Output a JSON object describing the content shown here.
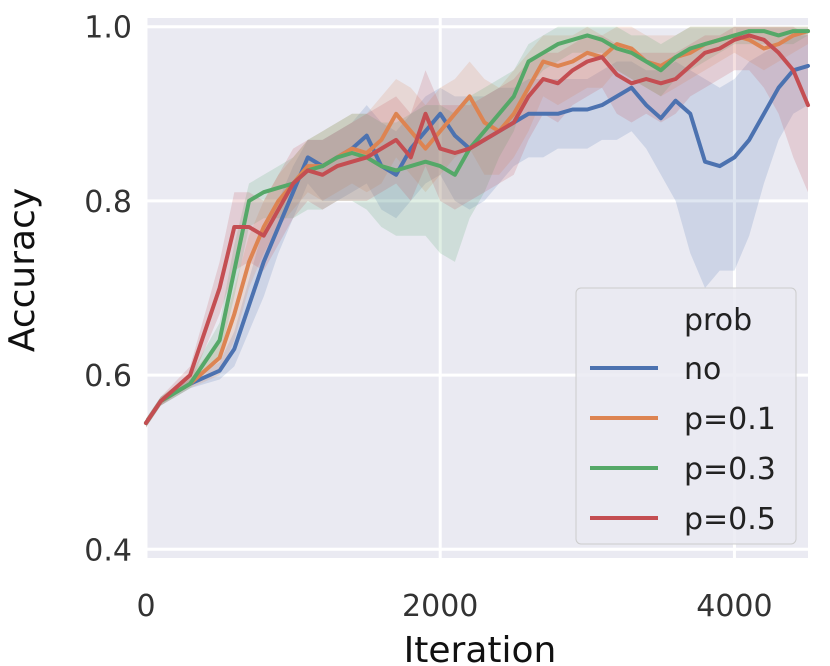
{
  "chart_data": {
    "type": "line",
    "title": "",
    "xlabel": "Iteration",
    "ylabel": "Accuracy",
    "xlim": [
      0,
      4500
    ],
    "ylim": [
      0.4,
      1.0
    ],
    "xticks": [
      0,
      2000,
      4000
    ],
    "xtick_labels": [
      "0",
      "2000",
      "4000"
    ],
    "yticks": [
      0.4,
      0.6,
      0.8,
      1.0
    ],
    "ytick_labels": [
      "0.4",
      "0.6",
      "0.8",
      "1.0"
    ],
    "grid": true,
    "background": "#eaeaf2",
    "legend": {
      "title": "prob",
      "position": "lower-right"
    },
    "series": [
      {
        "name": "no",
        "color": "#4c72b0",
        "x": [
          0,
          100,
          300,
          500,
          600,
          700,
          800,
          900,
          1000,
          1100,
          1200,
          1300,
          1400,
          1500,
          1600,
          1700,
          1800,
          1900,
          2000,
          2100,
          2200,
          2300,
          2400,
          2500,
          2600,
          2700,
          2800,
          2900,
          3000,
          3100,
          3200,
          3300,
          3400,
          3500,
          3600,
          3700,
          3800,
          3900,
          4000,
          4100,
          4200,
          4300,
          4400,
          4500
        ],
        "y": [
          0.545,
          0.57,
          0.59,
          0.605,
          0.63,
          0.68,
          0.73,
          0.77,
          0.81,
          0.85,
          0.84,
          0.85,
          0.86,
          0.875,
          0.84,
          0.83,
          0.86,
          0.88,
          0.9,
          0.875,
          0.86,
          0.87,
          0.88,
          0.89,
          0.9,
          0.9,
          0.9,
          0.905,
          0.905,
          0.91,
          0.92,
          0.93,
          0.91,
          0.895,
          0.915,
          0.9,
          0.845,
          0.84,
          0.85,
          0.87,
          0.9,
          0.93,
          0.95,
          0.955
        ],
        "lower": [
          0.54,
          0.565,
          0.585,
          0.595,
          0.61,
          0.65,
          0.69,
          0.74,
          0.78,
          0.82,
          0.8,
          0.8,
          0.81,
          0.82,
          0.79,
          0.78,
          0.8,
          0.82,
          0.83,
          0.8,
          0.79,
          0.8,
          0.82,
          0.84,
          0.85,
          0.85,
          0.86,
          0.86,
          0.86,
          0.87,
          0.87,
          0.88,
          0.86,
          0.83,
          0.8,
          0.74,
          0.7,
          0.72,
          0.72,
          0.76,
          0.82,
          0.87,
          0.9,
          0.91
        ],
        "upper": [
          0.55,
          0.575,
          0.595,
          0.615,
          0.65,
          0.71,
          0.77,
          0.8,
          0.84,
          0.87,
          0.87,
          0.88,
          0.89,
          0.91,
          0.89,
          0.88,
          0.9,
          0.92,
          0.93,
          0.92,
          0.92,
          0.92,
          0.93,
          0.93,
          0.94,
          0.94,
          0.94,
          0.94,
          0.94,
          0.95,
          0.96,
          0.96,
          0.95,
          0.95,
          0.96,
          0.95,
          0.94,
          0.93,
          0.94,
          0.96,
          0.97,
          0.98,
          0.99,
          0.99
        ]
      },
      {
        "name": "p=0.1",
        "color": "#dd8452",
        "x": [
          0,
          100,
          300,
          500,
          600,
          700,
          800,
          900,
          1000,
          1100,
          1200,
          1300,
          1400,
          1500,
          1600,
          1700,
          1800,
          1900,
          2000,
          2100,
          2200,
          2300,
          2400,
          2500,
          2600,
          2700,
          2800,
          2900,
          3000,
          3100,
          3200,
          3300,
          3400,
          3500,
          3600,
          3700,
          3800,
          3900,
          4000,
          4100,
          4200,
          4300,
          4400,
          4500
        ],
        "y": [
          0.545,
          0.57,
          0.59,
          0.62,
          0.67,
          0.73,
          0.77,
          0.8,
          0.82,
          0.84,
          0.84,
          0.85,
          0.86,
          0.855,
          0.87,
          0.9,
          0.88,
          0.86,
          0.88,
          0.9,
          0.92,
          0.89,
          0.88,
          0.9,
          0.93,
          0.96,
          0.955,
          0.96,
          0.97,
          0.965,
          0.98,
          0.975,
          0.96,
          0.955,
          0.965,
          0.97,
          0.98,
          0.985,
          0.99,
          0.985,
          0.975,
          0.98,
          0.99,
          0.995
        ],
        "lower": [
          0.54,
          0.565,
          0.585,
          0.6,
          0.64,
          0.7,
          0.74,
          0.77,
          0.79,
          0.81,
          0.8,
          0.81,
          0.82,
          0.81,
          0.82,
          0.85,
          0.83,
          0.81,
          0.83,
          0.85,
          0.86,
          0.83,
          0.83,
          0.85,
          0.88,
          0.92,
          0.91,
          0.92,
          0.93,
          0.93,
          0.95,
          0.94,
          0.93,
          0.92,
          0.93,
          0.94,
          0.95,
          0.96,
          0.97,
          0.96,
          0.95,
          0.96,
          0.97,
          0.98
        ],
        "upper": [
          0.55,
          0.575,
          0.6,
          0.64,
          0.7,
          0.76,
          0.8,
          0.83,
          0.85,
          0.87,
          0.88,
          0.89,
          0.9,
          0.9,
          0.92,
          0.94,
          0.93,
          0.91,
          0.93,
          0.94,
          0.96,
          0.94,
          0.93,
          0.95,
          0.97,
          0.99,
          0.99,
          0.99,
          1.0,
          0.99,
          1.0,
          1.0,
          0.99,
          0.99,
          0.99,
          1.0,
          1.0,
          1.0,
          1.0,
          1.0,
          1.0,
          1.0,
          1.0,
          1.0
        ]
      },
      {
        "name": "p=0.3",
        "color": "#55a868",
        "x": [
          0,
          100,
          300,
          500,
          600,
          700,
          800,
          900,
          1000,
          1100,
          1200,
          1300,
          1400,
          1500,
          1600,
          1700,
          1800,
          1900,
          2000,
          2100,
          2200,
          2300,
          2400,
          2500,
          2600,
          2700,
          2800,
          2900,
          3000,
          3100,
          3200,
          3300,
          3400,
          3500,
          3600,
          3700,
          3800,
          3900,
          4000,
          4100,
          4200,
          4300,
          4400,
          4500
        ],
        "y": [
          0.545,
          0.57,
          0.59,
          0.64,
          0.72,
          0.8,
          0.81,
          0.815,
          0.82,
          0.835,
          0.84,
          0.85,
          0.855,
          0.85,
          0.84,
          0.835,
          0.84,
          0.845,
          0.84,
          0.83,
          0.86,
          0.88,
          0.9,
          0.92,
          0.96,
          0.97,
          0.98,
          0.985,
          0.99,
          0.985,
          0.975,
          0.97,
          0.96,
          0.95,
          0.965,
          0.975,
          0.98,
          0.985,
          0.99,
          0.995,
          0.995,
          0.99,
          0.995,
          0.995
        ],
        "lower": [
          0.54,
          0.565,
          0.585,
          0.62,
          0.69,
          0.77,
          0.78,
          0.78,
          0.78,
          0.79,
          0.79,
          0.8,
          0.8,
          0.79,
          0.77,
          0.76,
          0.76,
          0.76,
          0.74,
          0.73,
          0.78,
          0.81,
          0.85,
          0.88,
          0.93,
          0.95,
          0.96,
          0.97,
          0.97,
          0.97,
          0.95,
          0.94,
          0.93,
          0.92,
          0.94,
          0.95,
          0.96,
          0.97,
          0.98,
          0.98,
          0.98,
          0.98,
          0.98,
          0.99
        ],
        "upper": [
          0.55,
          0.575,
          0.6,
          0.66,
          0.75,
          0.82,
          0.83,
          0.84,
          0.85,
          0.87,
          0.88,
          0.89,
          0.9,
          0.9,
          0.89,
          0.89,
          0.9,
          0.91,
          0.91,
          0.9,
          0.92,
          0.93,
          0.94,
          0.95,
          0.98,
          0.99,
          1.0,
          1.0,
          1.0,
          1.0,
          1.0,
          0.99,
          0.99,
          0.98,
          0.99,
          1.0,
          1.0,
          1.0,
          1.0,
          1.0,
          1.0,
          1.0,
          1.0,
          1.0
        ]
      },
      {
        "name": "p=0.5",
        "color": "#c44e52",
        "x": [
          0,
          100,
          300,
          500,
          600,
          700,
          800,
          900,
          1000,
          1100,
          1200,
          1300,
          1400,
          1500,
          1600,
          1700,
          1800,
          1900,
          2000,
          2100,
          2200,
          2300,
          2400,
          2500,
          2600,
          2700,
          2800,
          2900,
          3000,
          3100,
          3200,
          3300,
          3400,
          3500,
          3600,
          3700,
          3800,
          3900,
          4000,
          4100,
          4200,
          4300,
          4400,
          4500
        ],
        "y": [
          0.545,
          0.57,
          0.6,
          0.7,
          0.77,
          0.77,
          0.76,
          0.79,
          0.82,
          0.835,
          0.83,
          0.84,
          0.845,
          0.85,
          0.86,
          0.87,
          0.85,
          0.9,
          0.86,
          0.855,
          0.86,
          0.87,
          0.88,
          0.89,
          0.92,
          0.94,
          0.935,
          0.95,
          0.96,
          0.965,
          0.945,
          0.935,
          0.94,
          0.935,
          0.94,
          0.955,
          0.97,
          0.975,
          0.985,
          0.99,
          0.985,
          0.97,
          0.95,
          0.91
        ],
        "lower": [
          0.54,
          0.565,
          0.59,
          0.67,
          0.72,
          0.73,
          0.72,
          0.75,
          0.78,
          0.8,
          0.79,
          0.8,
          0.8,
          0.8,
          0.81,
          0.82,
          0.8,
          0.84,
          0.8,
          0.79,
          0.8,
          0.81,
          0.82,
          0.83,
          0.87,
          0.9,
          0.89,
          0.91,
          0.92,
          0.93,
          0.9,
          0.89,
          0.9,
          0.89,
          0.9,
          0.92,
          0.93,
          0.94,
          0.95,
          0.95,
          0.93,
          0.9,
          0.85,
          0.81
        ],
        "upper": [
          0.55,
          0.575,
          0.61,
          0.73,
          0.81,
          0.81,
          0.8,
          0.83,
          0.86,
          0.87,
          0.87,
          0.88,
          0.89,
          0.9,
          0.91,
          0.92,
          0.9,
          0.95,
          0.91,
          0.91,
          0.91,
          0.92,
          0.93,
          0.94,
          0.96,
          0.97,
          0.97,
          0.98,
          0.99,
          0.99,
          0.98,
          0.97,
          0.97,
          0.97,
          0.97,
          0.98,
          0.99,
          0.99,
          1.0,
          1.0,
          1.0,
          1.0,
          1.0,
          0.99
        ]
      }
    ]
  }
}
